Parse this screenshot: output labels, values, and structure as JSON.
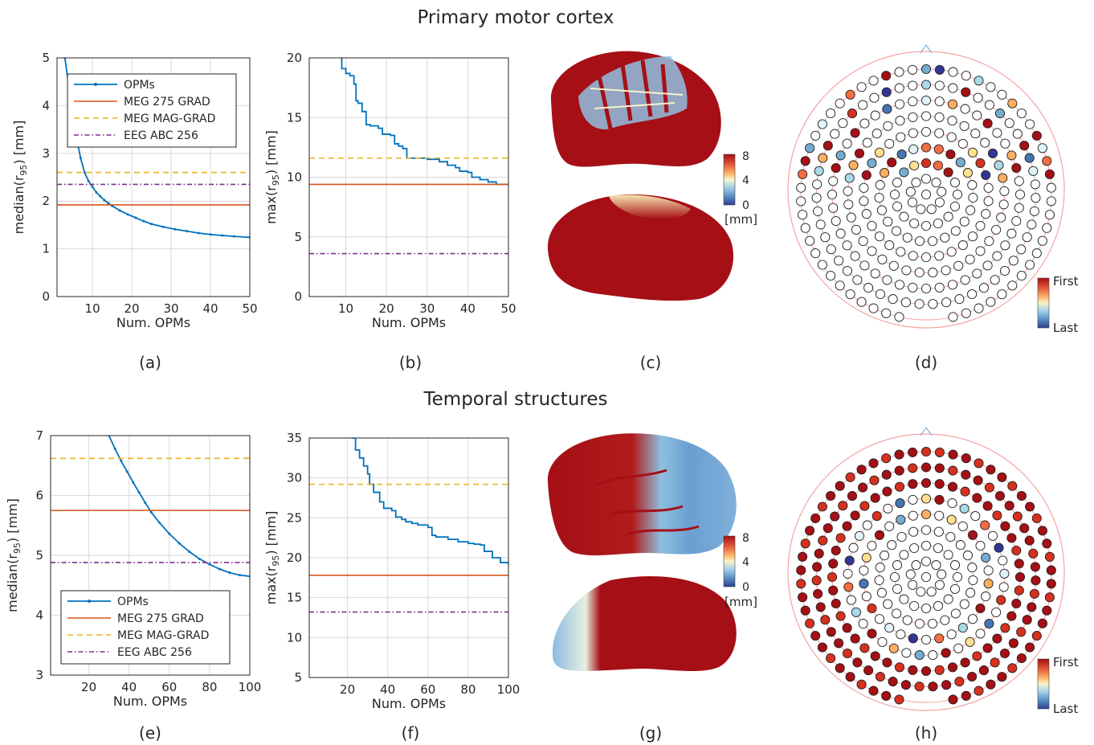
{
  "rows": [
    {
      "title": "Primary motor cortex"
    },
    {
      "title": "Temporal structures"
    }
  ],
  "panel_labels": [
    "(a)",
    "(b)",
    "(c)",
    "(d)",
    "(e)",
    "(f)",
    "(g)",
    "(h)"
  ],
  "colors": {
    "opm": "#0072BD",
    "meg275": "#D95319",
    "megmag": "#EDB120",
    "eeg": "#7E2F8E",
    "grid": "#d9d9d9",
    "head_rings": "#f4a3a3",
    "nose": "#7fb3e0",
    "map_high": "#a50f15",
    "map_mid": "#f4f2c8",
    "map_low": "#3f6db3"
  },
  "colorbar_map": {
    "ticks": [
      "8",
      "4",
      "0"
    ],
    "unit": "[mm]"
  },
  "colorbar_order": {
    "top": "First",
    "bottom": "Last"
  },
  "chart_data": [
    {
      "id": "a",
      "type": "line",
      "xlabel": "Num. OPMs",
      "ylabel": "median(r95) [mm]",
      "ylabel_base": "median(r",
      "ylabel_sub": "95",
      "ylabel_tail": ") [mm]",
      "xlim": [
        1,
        50
      ],
      "ylim": [
        0,
        5
      ],
      "xticks": [
        10,
        20,
        30,
        40,
        50
      ],
      "yticks": [
        0,
        1,
        2,
        3,
        4,
        5
      ],
      "grid": true,
      "legend": "top-left",
      "series": [
        {
          "name": "OPMs",
          "style": "line-dots",
          "x": [
            3,
            4,
            5,
            6,
            7,
            8,
            9,
            10,
            11,
            12,
            13,
            14,
            15,
            17,
            19,
            21,
            23,
            25,
            28,
            31,
            34,
            37,
            40,
            43,
            46,
            50
          ],
          "y": [
            5.0,
            4.4,
            3.85,
            3.3,
            2.9,
            2.6,
            2.42,
            2.3,
            2.18,
            2.1,
            2.02,
            1.96,
            1.9,
            1.8,
            1.72,
            1.65,
            1.58,
            1.52,
            1.46,
            1.41,
            1.37,
            1.33,
            1.3,
            1.28,
            1.26,
            1.24
          ]
        },
        {
          "name": "MEG 275 GRAD",
          "style": "solid",
          "y": 1.92
        },
        {
          "name": "MEG MAG-GRAD",
          "style": "dashed",
          "y": 2.6
        },
        {
          "name": "EEG ABC 256",
          "style": "dashdot",
          "y": 2.35
        }
      ]
    },
    {
      "id": "b",
      "type": "line",
      "xlabel": "Num. OPMs",
      "ylabel": "max(r95) [mm]",
      "ylabel_base": "max(r",
      "ylabel_sub": "95",
      "ylabel_tail": ") [mm]",
      "xlim": [
        1,
        50
      ],
      "ylim": [
        0,
        20
      ],
      "xticks": [
        10,
        20,
        30,
        40,
        50
      ],
      "yticks": [
        0,
        5,
        10,
        15,
        20
      ],
      "grid": true,
      "legend": "none",
      "series": [
        {
          "name": "OPMs",
          "style": "steps",
          "x": [
            9,
            9,
            10,
            11,
            12,
            12.5,
            13,
            14,
            15,
            16,
            18,
            19,
            21,
            22,
            23,
            24,
            25,
            25.5,
            28,
            30,
            33,
            35,
            37,
            38,
            40,
            41,
            43,
            45,
            47,
            50
          ],
          "y": [
            20,
            19.1,
            18.7,
            18.5,
            17.8,
            16.4,
            16.2,
            15.5,
            14.4,
            14.3,
            14.1,
            13.6,
            13.5,
            12.8,
            12.6,
            12.4,
            11.6,
            11.6,
            11.6,
            11.5,
            11.3,
            11.0,
            10.8,
            10.5,
            10.4,
            10.0,
            9.8,
            9.6,
            9.4,
            9.3
          ]
        },
        {
          "name": "MEG 275 GRAD",
          "style": "solid",
          "y": 9.4
        },
        {
          "name": "MEG MAG-GRAD",
          "style": "dashed",
          "y": 11.6
        },
        {
          "name": "EEG ABC 256",
          "style": "dashdot",
          "y": 3.6
        }
      ]
    },
    {
      "id": "e",
      "type": "line",
      "xlabel": "Num. OPMs",
      "ylabel": "median(r95) [mm]",
      "ylabel_base": "median(r",
      "ylabel_sub": "95",
      "ylabel_tail": ") [mm]",
      "xlim": [
        1,
        100
      ],
      "ylim": [
        3,
        7
      ],
      "xticks": [
        20,
        40,
        60,
        80,
        100
      ],
      "yticks": [
        3,
        4,
        5,
        6,
        7
      ],
      "grid": true,
      "legend": "bottom-left",
      "series": [
        {
          "name": "OPMs",
          "style": "line-dots",
          "x": [
            30,
            33,
            36,
            39,
            42,
            45,
            48,
            51,
            55,
            60,
            65,
            70,
            75,
            80,
            85,
            90,
            95,
            100
          ],
          "y": [
            7.0,
            6.78,
            6.58,
            6.4,
            6.22,
            6.05,
            5.88,
            5.72,
            5.55,
            5.36,
            5.2,
            5.06,
            4.94,
            4.85,
            4.77,
            4.71,
            4.67,
            4.65
          ]
        },
        {
          "name": "MEG 275 GRAD",
          "style": "solid",
          "y": 5.75
        },
        {
          "name": "MEG MAG-GRAD",
          "style": "dashed",
          "y": 6.62
        },
        {
          "name": "EEG ABC 256",
          "style": "dashdot",
          "y": 4.88
        }
      ]
    },
    {
      "id": "f",
      "type": "line",
      "xlabel": "Num. OPMs",
      "ylabel": "max(r95) [mm]",
      "ylabel_base": "max(r",
      "ylabel_sub": "95",
      "ylabel_tail": ") [mm]",
      "xlim": [
        1,
        100
      ],
      "ylim": [
        5,
        35
      ],
      "xticks": [
        20,
        40,
        60,
        80,
        100
      ],
      "yticks": [
        5,
        10,
        15,
        20,
        25,
        30,
        35
      ],
      "grid": true,
      "legend": "none",
      "series": [
        {
          "name": "OPMs",
          "style": "steps",
          "x": [
            22,
            24,
            26,
            28,
            30,
            31,
            33,
            36,
            38,
            42,
            44,
            47,
            49,
            52,
            55,
            60,
            62,
            64,
            70,
            75,
            80,
            83,
            86,
            88,
            92,
            96,
            100
          ],
          "y": [
            35,
            33.5,
            32.5,
            31.5,
            30.5,
            29.2,
            28.2,
            27.0,
            26.2,
            25.9,
            25.1,
            24.8,
            24.5,
            24.3,
            24.1,
            23.8,
            22.8,
            22.6,
            22.3,
            22.0,
            21.8,
            21.7,
            21.6,
            20.8,
            20.0,
            19.4,
            19.0
          ]
        },
        {
          "name": "MEG 275 GRAD",
          "style": "solid",
          "y": 17.8
        },
        {
          "name": "MEG MAG-GRAD",
          "style": "dashed",
          "y": 29.2
        },
        {
          "name": "EEG ABC 256",
          "style": "dashdot",
          "y": 13.2
        }
      ]
    }
  ]
}
